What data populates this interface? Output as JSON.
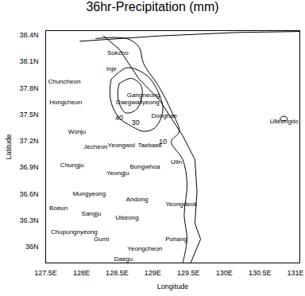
{
  "chart_data": {
    "type": "contour",
    "title": "36hr-Precipitation (mm)",
    "xlabel": "Longitude",
    "ylabel": "Latitude",
    "xlim": [
      127.5,
      131.06
    ],
    "ylim": [
      35.82,
      38.45
    ],
    "xticks": [
      {
        "value": 127.5,
        "label": "127.5E"
      },
      {
        "value": 128,
        "label": "128E"
      },
      {
        "value": 128.5,
        "label": "128.5E"
      },
      {
        "value": 129,
        "label": "129E"
      },
      {
        "value": 129.5,
        "label": "129.5E"
      },
      {
        "value": 130,
        "label": "130E"
      },
      {
        "value": 130.5,
        "label": "130.5E"
      },
      {
        "value": 131,
        "label": "131E"
      }
    ],
    "yticks": [
      {
        "value": 36,
        "label": "36N"
      },
      {
        "value": 36.3,
        "label": "36.3N"
      },
      {
        "value": 36.6,
        "label": "36.6N"
      },
      {
        "value": 36.9,
        "label": "36.9N"
      },
      {
        "value": 37.2,
        "label": "37.2N"
      },
      {
        "value": 37.5,
        "label": "37.5N"
      },
      {
        "value": 37.8,
        "label": "37.8N"
      },
      {
        "value": 38.1,
        "label": "38.1N"
      },
      {
        "value": 38.4,
        "label": "38.4N"
      }
    ],
    "color": "#000000",
    "contours": [
      {
        "level": 40,
        "label_lon": 128.53,
        "label_lat": 37.46,
        "lon": [
          128.53,
          128.7,
          128.84,
          128.84,
          128.76,
          128.62,
          128.53,
          128.51,
          128.53
        ],
        "lat": [
          37.85,
          37.91,
          37.82,
          37.67,
          37.55,
          37.52,
          37.63,
          37.76,
          37.85
        ]
      },
      {
        "level": 30,
        "label_lon": 128.76,
        "label_lat": 37.41,
        "lon": [
          128.42,
          128.64,
          128.92,
          129.09,
          129.14,
          129.03,
          128.87,
          128.7,
          128.53,
          128.42,
          128.4,
          128.42
        ],
        "lat": [
          37.9,
          38.03,
          37.94,
          37.73,
          37.54,
          37.35,
          37.31,
          37.37,
          37.46,
          37.63,
          37.79,
          37.9
        ]
      },
      {
        "level": 10,
        "label_lon": 129.14,
        "label_lat": 37.19,
        "lon": [
          128.2,
          128.64,
          128.81,
          128.87,
          129.09,
          129.26,
          129.37,
          129.26,
          129.42,
          129.48,
          129.44,
          129.48,
          129.42
        ],
        "lat": [
          38.36,
          38.36,
          38.26,
          38.08,
          37.81,
          37.54,
          37.31,
          37.19,
          36.99,
          36.72,
          36.36,
          36.09,
          35.82
        ]
      }
    ],
    "coastlines": [
      {
        "lon": [
          128.31,
          128.53,
          128.81,
          129.09,
          129.42,
          129.59,
          129.62,
          129.59,
          129.67,
          129.53
        ],
        "lat": [
          38.39,
          38.24,
          37.9,
          37.67,
          37.26,
          36.99,
          36.63,
          36.27,
          36.09,
          35.82
        ]
      },
      {
        "lon": [
          127.98,
          129.09,
          130.2,
          131.06
        ],
        "lat": [
          38.33,
          38.39,
          38.43,
          38.44
        ]
      },
      {
        "lon": [
          130.78,
          130.81,
          130.86,
          130.89,
          130.86,
          130.81,
          130.78
        ],
        "lat": [
          37.45,
          37.48,
          37.48,
          37.45,
          37.43,
          37.43,
          37.45
        ]
      }
    ],
    "locations": [
      {
        "name": "Sokcho",
        "lon": 128.51,
        "lat": 38.2
      },
      {
        "name": "Inje",
        "lon": 128.42,
        "lat": 38.02
      },
      {
        "name": "Chuncheon",
        "lon": 127.76,
        "lat": 37.87
      },
      {
        "name": "Hongcheon",
        "lon": 127.78,
        "lat": 37.64
      },
      {
        "name": "Gangneung",
        "lon": 128.87,
        "lat": 37.72
      },
      {
        "name": "Daegwallyeong",
        "lon": 128.79,
        "lat": 37.64
      },
      {
        "name": "Donghae",
        "lon": 129.16,
        "lat": 37.49
      },
      {
        "name": "Ulleungdo",
        "lon": 130.84,
        "lat": 37.42
      },
      {
        "name": "Wonju",
        "lon": 127.94,
        "lat": 37.31
      },
      {
        "name": "Jecheon",
        "lon": 128.2,
        "lat": 37.14
      },
      {
        "name": "Yeongwol",
        "lon": 128.56,
        "lat": 37.15
      },
      {
        "name": "Taebaek",
        "lon": 128.96,
        "lat": 37.15
      },
      {
        "name": "Chungju",
        "lon": 127.87,
        "lat": 36.93
      },
      {
        "name": "Yeongju",
        "lon": 128.51,
        "lat": 36.84
      },
      {
        "name": "Bongwhoa",
        "lon": 128.89,
        "lat": 36.91
      },
      {
        "name": "Ulin",
        "lon": 129.33,
        "lat": 36.96
      },
      {
        "name": "Mungyeong",
        "lon": 128.11,
        "lat": 36.6
      },
      {
        "name": "Andong",
        "lon": 128.78,
        "lat": 36.54
      },
      {
        "name": "Boeun",
        "lon": 127.68,
        "lat": 36.44
      },
      {
        "name": "Sangju",
        "lon": 128.14,
        "lat": 36.38
      },
      {
        "name": "Yeongdeok",
        "lon": 129.4,
        "lat": 36.49
      },
      {
        "name": "Uiseong",
        "lon": 128.64,
        "lat": 36.33
      },
      {
        "name": "Chupungnyeong",
        "lon": 127.9,
        "lat": 36.17
      },
      {
        "name": "Gumi",
        "lon": 128.28,
        "lat": 36.09
      },
      {
        "name": "Pohang",
        "lon": 129.33,
        "lat": 36.09
      },
      {
        "name": "Yeongcheon",
        "lon": 128.89,
        "lat": 35.98
      },
      {
        "name": "Daegu",
        "lon": 128.59,
        "lat": 35.87
      }
    ]
  }
}
